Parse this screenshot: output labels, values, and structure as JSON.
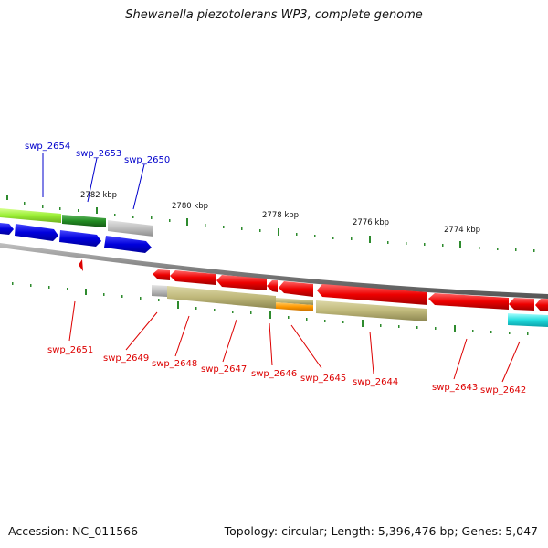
{
  "title": "Shewanella piezotolerans WP3, complete genome",
  "accession": "Accession: NC_011566",
  "summary": "Topology: circular; Length: 5,396,476 bp; Genes: 5,047",
  "scale_labels": [
    "2782 kbp",
    "2780 kbp",
    "2778 kbp",
    "2776 kbp",
    "2774 kbp"
  ],
  "upper_genes": [
    "swp_2654",
    "swp_2653",
    "swp_2650"
  ],
  "lower_genes": [
    "swp_2651",
    "swp_2649",
    "swp_2648",
    "swp_2647",
    "swp_2646",
    "swp_2645",
    "swp_2644",
    "swp_2643",
    "swp_2642"
  ],
  "colors": {
    "upper_label": "#0000cc",
    "lower_label": "#dd0000",
    "backbone": "#888888",
    "tick": "#2e8b2e"
  }
}
